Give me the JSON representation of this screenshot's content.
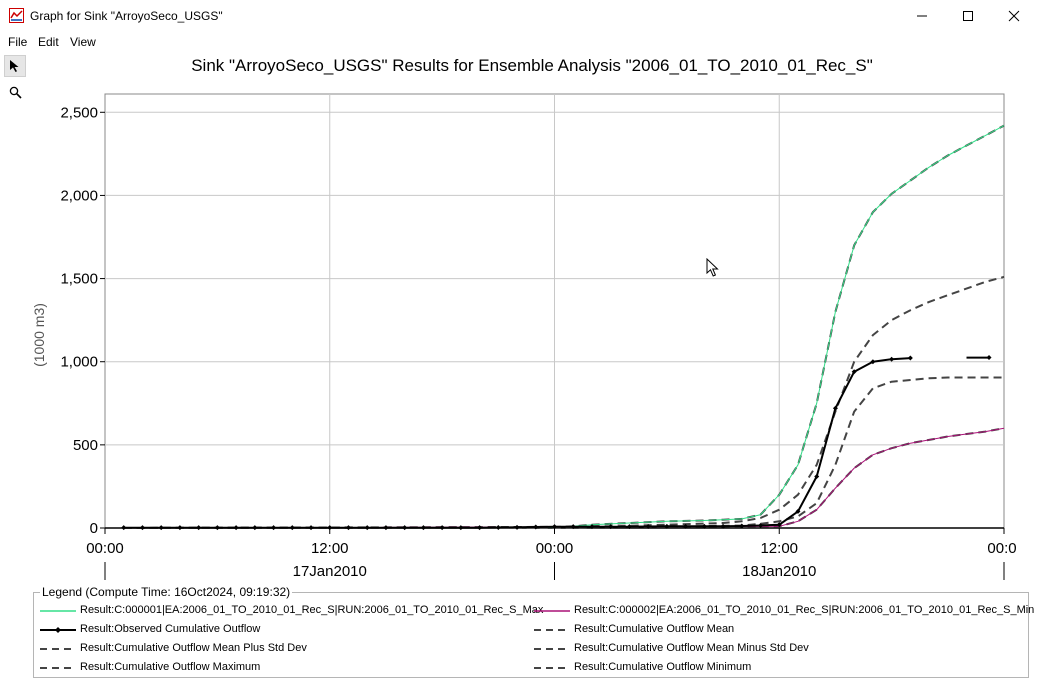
{
  "window": {
    "title": "Graph for Sink \"ArroyoSeco_USGS\"",
    "minimize_glyph": "—",
    "maximize_glyph": "☐",
    "close_glyph": "✕"
  },
  "menu": {
    "file": "File",
    "edit": "Edit",
    "view": "View"
  },
  "tools": {
    "pointer": "pointer-icon",
    "zoom": "magnifier-icon"
  },
  "chart_data": {
    "type": "line",
    "title": "Sink \"ArroyoSeco_USGS\" Results for Ensemble Analysis \"2006_01_TO_2010_01_Rec_S\"",
    "ylabel": "(1000 m3)",
    "xlabel": "",
    "xlim_hours": [
      0,
      48
    ],
    "ylim": [
      0,
      2500
    ],
    "y_ticks": [
      0,
      500,
      1000,
      1500,
      2000,
      2500
    ],
    "y_tick_labels": [
      "0",
      "500",
      "1,000",
      "1,500",
      "2,000",
      "2,500"
    ],
    "x_ticks": [
      {
        "hour": 0,
        "label": "00:00"
      },
      {
        "hour": 12,
        "label": "12:00"
      },
      {
        "hour": 24,
        "label": "00:00"
      },
      {
        "hour": 36,
        "label": "12:00"
      },
      {
        "hour": 48,
        "label": "00:0"
      }
    ],
    "date_labels": [
      {
        "hour": 12,
        "label": "17Jan2010"
      },
      {
        "hour": 36,
        "label": "18Jan2010"
      }
    ],
    "grid": true,
    "series": [
      {
        "name": "Result:Cumulative Outflow Maximum",
        "color": "#444444",
        "dash": "8,5",
        "width": 2,
        "x": [
          1,
          24,
          25,
          26,
          28,
          30,
          32,
          33,
          34,
          35,
          36,
          37,
          38,
          39,
          40,
          41,
          42,
          43,
          44,
          45,
          46,
          47,
          48
        ],
        "y": [
          0,
          5,
          10,
          20,
          30,
          40,
          45,
          50,
          55,
          80,
          200,
          380,
          750,
          1300,
          1700,
          1900,
          2010,
          2090,
          2170,
          2240,
          2300,
          2360,
          2420
        ]
      },
      {
        "name": "Result:C:000001|EA:2006_01_TO_2010_01_Rec_S|RUN:2006_01_TO_2010_01_Rec_S_Max",
        "color": "#33dd88",
        "dash": "",
        "width": 1,
        "x": [
          1,
          24,
          25,
          26,
          28,
          30,
          32,
          33,
          34,
          35,
          36,
          37,
          38,
          39,
          40,
          41,
          42,
          43,
          44,
          45,
          46,
          47,
          48
        ],
        "y": [
          0,
          5,
          10,
          20,
          30,
          40,
          45,
          50,
          55,
          80,
          200,
          380,
          750,
          1300,
          1700,
          1900,
          2010,
          2090,
          2170,
          2240,
          2300,
          2360,
          2420
        ]
      },
      {
        "name": "Result:Cumulative Outflow Mean Plus Std Dev",
        "color": "#444444",
        "dash": "8,5",
        "width": 2,
        "x": [
          1,
          24,
          27,
          30,
          33,
          34,
          35,
          36,
          37,
          38,
          39,
          40,
          41,
          42,
          43,
          44,
          45,
          46,
          47,
          48
        ],
        "y": [
          0,
          5,
          10,
          20,
          30,
          40,
          60,
          110,
          200,
          380,
          700,
          1000,
          1160,
          1250,
          1310,
          1360,
          1400,
          1440,
          1480,
          1510
        ]
      },
      {
        "name": "Result:Cumulative Outflow Mean",
        "color": "#444444",
        "dash": "8,5",
        "width": 2,
        "x": [
          1,
          24,
          30,
          34,
          35,
          36,
          37,
          38,
          39,
          40,
          41,
          42,
          43,
          44,
          45,
          46,
          47,
          48
        ],
        "y": [
          0,
          3,
          8,
          15,
          25,
          40,
          70,
          150,
          380,
          700,
          840,
          880,
          890,
          900,
          905,
          905,
          905,
          905
        ]
      },
      {
        "name": "Result:Cumulative Outflow Minimum",
        "color": "#444444",
        "dash": "8,5",
        "width": 2,
        "x": [
          1,
          36,
          37,
          38,
          39,
          40,
          41,
          42,
          43,
          44,
          45,
          46,
          47,
          48
        ],
        "y": [
          0,
          10,
          40,
          110,
          240,
          360,
          440,
          480,
          510,
          530,
          550,
          565,
          580,
          600
        ]
      },
      {
        "name": "Result:C:000002|EA:2006_01_TO_2010_01_Rec_S|RUN:2006_01_TO_2010_01_Rec_S_Min",
        "color": "#aa1177",
        "dash": "",
        "width": 1,
        "x": [
          1,
          36,
          37,
          38,
          39,
          40,
          41,
          42,
          43,
          44,
          45,
          46,
          47,
          48
        ],
        "y": [
          0,
          10,
          40,
          110,
          240,
          360,
          440,
          480,
          510,
          530,
          550,
          565,
          580,
          600
        ]
      },
      {
        "name": "Result:Cumulative Outflow Mean Minus Std Dev",
        "color": "#444444",
        "dash": "8,5",
        "width": 1,
        "x": [],
        "y": []
      },
      {
        "name": "Result:Observed Cumulative Outflow",
        "color": "#000000",
        "dash": "",
        "width": 2,
        "markers": true,
        "x": [
          1,
          2,
          3,
          4,
          5,
          6,
          7,
          8,
          9,
          10,
          11,
          12,
          13,
          14,
          15,
          16,
          17,
          18,
          19,
          20,
          21,
          22,
          23,
          24,
          25,
          26,
          27,
          28,
          29,
          30,
          31,
          32,
          33,
          34,
          35,
          36,
          37,
          38,
          39,
          40,
          41,
          42,
          43
        ],
        "y": [
          2,
          2,
          2,
          2,
          2,
          2,
          2,
          2,
          2,
          2,
          2,
          2,
          2,
          2,
          2,
          2,
          2,
          2,
          2,
          2,
          3,
          4,
          6,
          8,
          8,
          8,
          8,
          8,
          9,
          10,
          10,
          10,
          10,
          12,
          15,
          20,
          100,
          310,
          720,
          940,
          1000,
          1015,
          1022
        ]
      },
      {
        "name": "Result:Observed Cumulative Outflow",
        "color": "#000000",
        "dash": "",
        "width": 2,
        "markers": false,
        "x": [
          46,
          47.2
        ],
        "y": [
          1025,
          1025
        ]
      }
    ]
  },
  "legend": {
    "title": "Legend (Compute Time: 16Oct2024, 09:19:32)",
    "items": [
      {
        "label": "Result:C:000001|EA:2006_01_TO_2010_01_Rec_S|RUN:2006_01_TO_2010_01_Rec_S_Max",
        "color": "#33dd88",
        "style": "solid"
      },
      {
        "label": "Result:C:000002|EA:2006_01_TO_2010_01_Rec_S|RUN:2006_01_TO_2010_01_Rec_S_Min",
        "color": "#aa1177",
        "style": "solid"
      },
      {
        "label": "Result:Observed Cumulative Outflow",
        "color": "#000000",
        "style": "marker"
      },
      {
        "label": "Result:Cumulative Outflow Mean",
        "color": "#444444",
        "style": "dash"
      },
      {
        "label": "Result:Cumulative Outflow Mean Plus Std Dev",
        "color": "#444444",
        "style": "dash"
      },
      {
        "label": "Result:Cumulative Outflow Mean Minus Std Dev",
        "color": "#444444",
        "style": "dash"
      },
      {
        "label": "Result:Cumulative Outflow Maximum",
        "color": "#444444",
        "style": "dash"
      },
      {
        "label": "Result:Cumulative Outflow Minimum",
        "color": "#444444",
        "style": "dash"
      }
    ]
  }
}
